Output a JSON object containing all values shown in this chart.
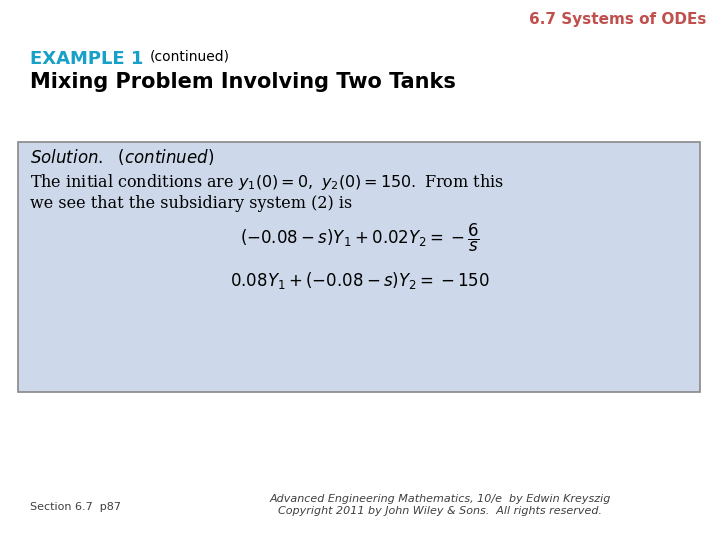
{
  "bg_color": "#ffffff",
  "header_text": "6.7 Systems of ODEs",
  "header_color": "#c0504d",
  "example_label": "EXAMPLE 1",
  "example_label_color": "#17a0c8",
  "example_continued": "(continued)",
  "subtitle": "Mixing Problem Involving Two Tanks",
  "box_bg_color": "#cdd9ea",
  "box_border_color": "#888888",
  "footer_left": "Section 6.7  p87",
  "footer_right_line1": "Advanced Engineering Mathematics, 10/e  by Edwin Kreyszig",
  "footer_right_line2": "Copyright 2011 by John Wiley & Sons.  All rights reserved.",
  "footer_color": "#404040"
}
